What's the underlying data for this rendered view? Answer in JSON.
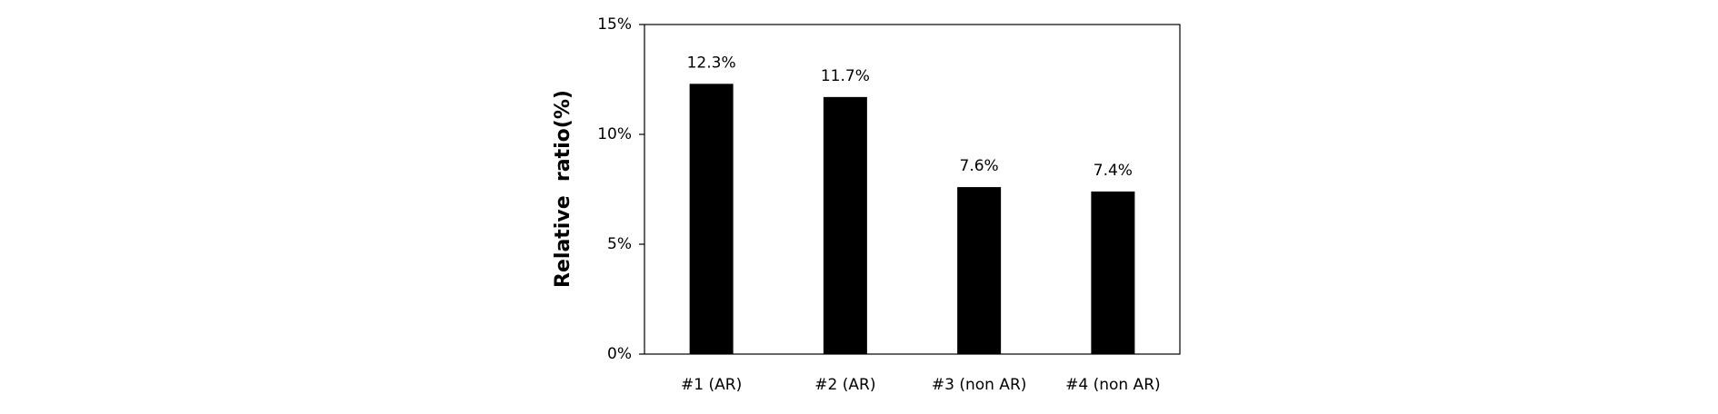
{
  "chart_data": {
    "type": "bar",
    "y_label": "Relative  ratio(%)",
    "categories": [
      "#1 (AR)",
      "#2 (AR)",
      "#3 (non AR)",
      "#4 (non AR)"
    ],
    "values": [
      12.3,
      11.7,
      7.6,
      7.4
    ],
    "value_labels": [
      "12.3%",
      "11.7%",
      "7.6%",
      "7.4%"
    ],
    "color": "#000000",
    "ylim": [
      0,
      15
    ],
    "yticks": [
      {
        "value": 0,
        "label": "0%"
      },
      {
        "value": 5,
        "label": "5%"
      },
      {
        "value": 10,
        "label": "10%"
      },
      {
        "value": 15,
        "label": "15%"
      }
    ],
    "grid": false
  }
}
